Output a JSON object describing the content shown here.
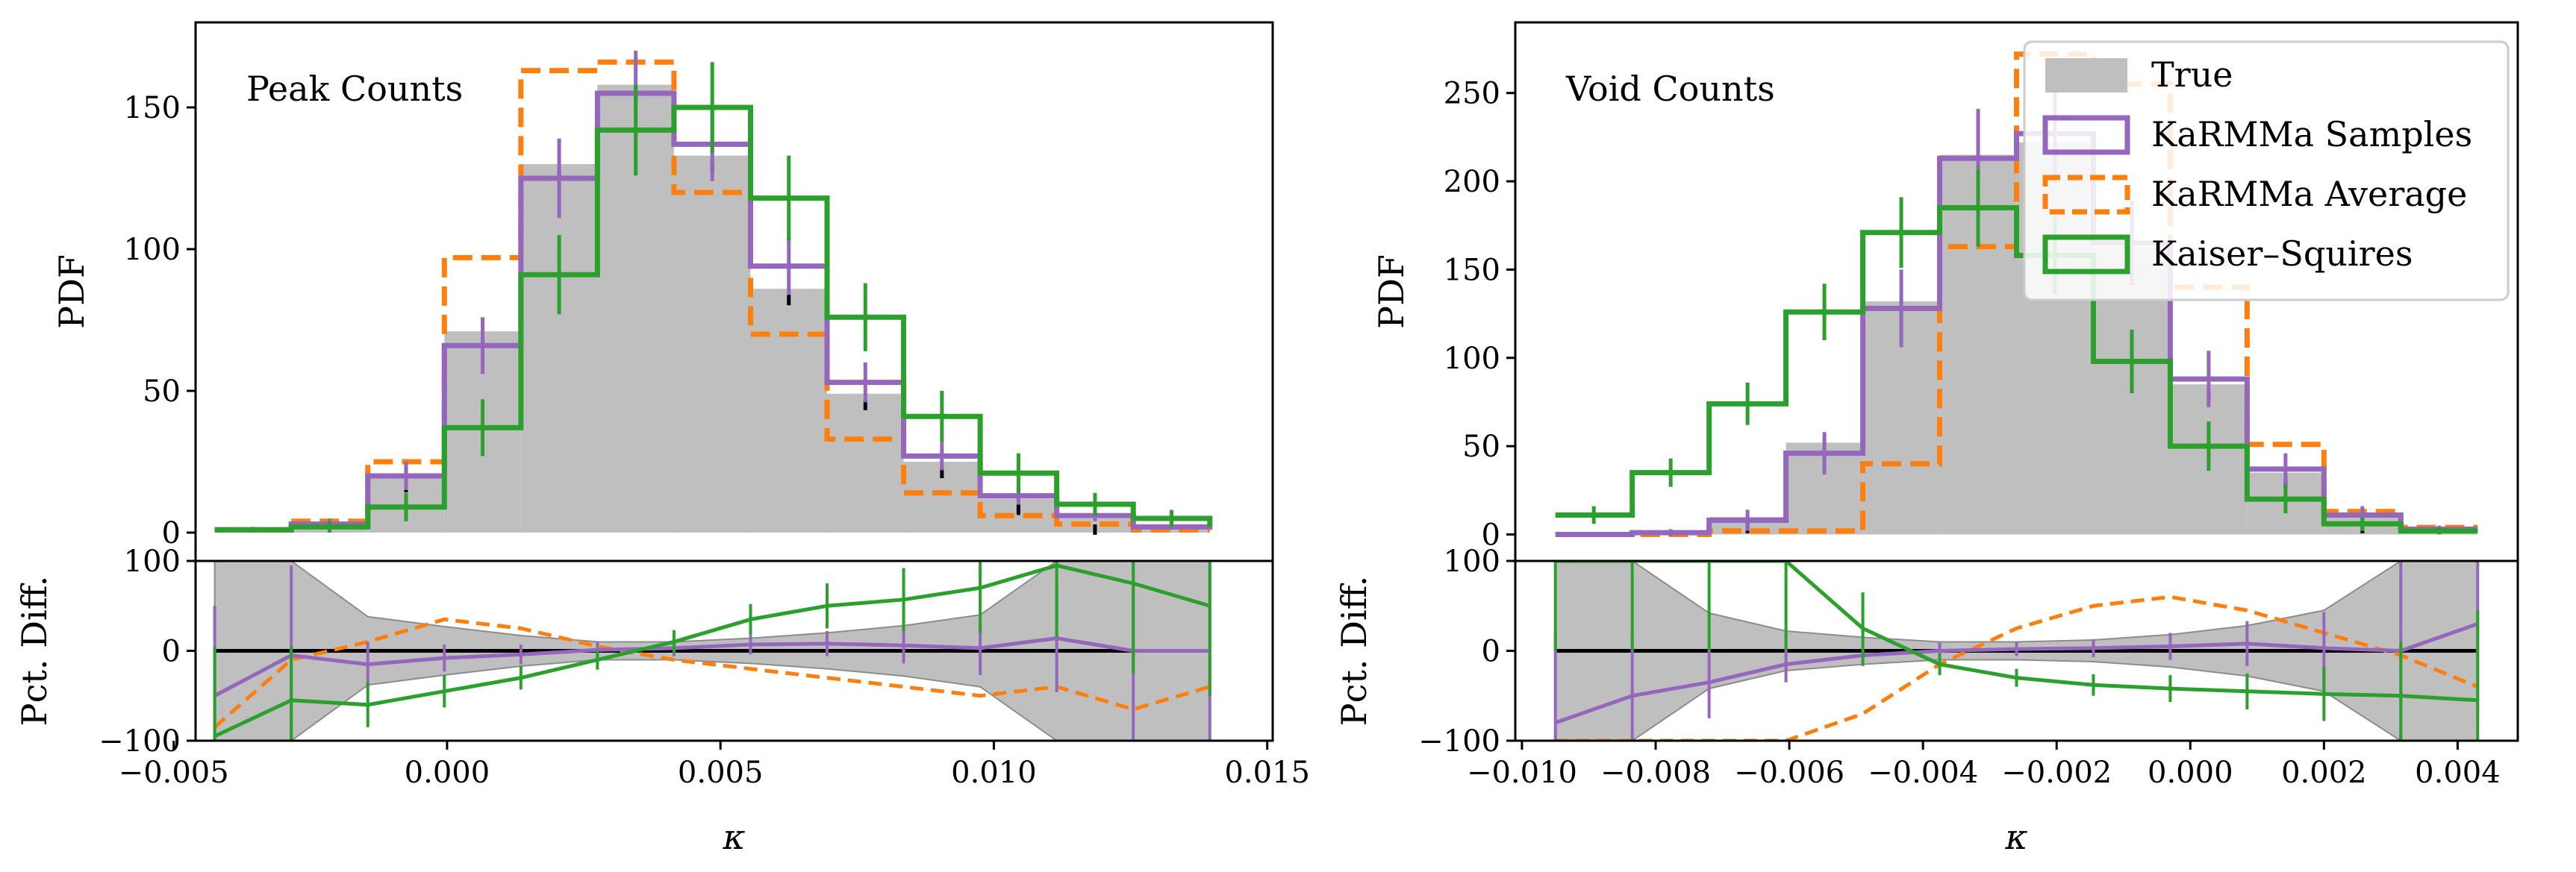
{
  "colors": {
    "true_fill": "#bfbfbf",
    "samples": "#9467bd",
    "average": "#ff7f0e",
    "ks": "#2ca02c",
    "band": "#bfbfbf"
  },
  "legend": {
    "placement": "top-right of right panel",
    "entries": [
      "True",
      "KaRMMa Samples",
      "KaRMMa Average",
      "Kaiser–Squires"
    ]
  },
  "chart_data": [
    {
      "type": "bar",
      "panel": "peak",
      "annotation": "Peak Counts",
      "ylabel": "PDF",
      "ylim": [
        -10,
        180
      ],
      "yticks": [
        0,
        50,
        100,
        150
      ],
      "bin_edges": [
        -0.00425,
        -0.00285,
        -0.00145,
        -5e-05,
        0.00135,
        0.00275,
        0.00415,
        0.00555,
        0.00695,
        0.00835,
        0.00975,
        0.01115,
        0.01255,
        0.01395
      ],
      "series": [
        {
          "name": "True",
          "values": [
            1,
            3,
            20,
            71,
            130,
            158,
            133,
            86,
            49,
            25,
            12,
            5,
            2,
            1
          ]
        },
        {
          "name": "KaRMMa Samples",
          "values": [
            1,
            3,
            20,
            66,
            125,
            155,
            137,
            94,
            53,
            27,
            13,
            6,
            2,
            1
          ],
          "err": [
            1,
            2,
            5,
            10,
            14,
            15,
            13,
            10,
            7,
            5,
            3,
            2,
            1,
            1
          ]
        },
        {
          "name": "KaRMMa Average",
          "values": [
            1,
            4,
            25,
            97,
            163,
            166,
            120,
            70,
            33,
            14,
            6,
            3,
            1,
            1
          ]
        },
        {
          "name": "Kaiser–Squires",
          "values": [
            1,
            2,
            9,
            37,
            91,
            142,
            150,
            118,
            76,
            41,
            21,
            10,
            5,
            2
          ],
          "err": [
            1,
            2,
            5,
            10,
            14,
            16,
            16,
            15,
            12,
            9,
            7,
            4,
            3,
            2
          ]
        }
      ],
      "diff": {
        "ylabel": "Pct. Diff.",
        "xlabel": "κ",
        "ylim": [
          -100,
          100
        ],
        "yticks": [
          -100,
          0,
          100
        ],
        "xlim": [
          -0.0046,
          0.0151
        ],
        "xticks": [
          -0.005,
          0.0,
          0.005,
          0.01,
          0.015
        ],
        "xtick_labels": [
          "−0.005",
          "0.000",
          "0.005",
          "0.010",
          "0.015"
        ],
        "x": [
          -0.00425,
          -0.00285,
          -0.00145,
          -5e-05,
          0.00135,
          0.00275,
          0.00415,
          0.00555,
          0.00695,
          0.00835,
          0.00975,
          0.01115,
          0.01255,
          0.01395
        ],
        "band_upper": [
          100,
          100,
          38,
          27,
          17,
          10,
          10,
          14,
          20,
          28,
          40,
          100,
          100,
          100
        ],
        "band_lower": [
          -100,
          -100,
          -38,
          -27,
          -17,
          -10,
          -10,
          -14,
          -20,
          -28,
          -40,
          -100,
          -100,
          -100
        ],
        "samples": [
          -50,
          -5,
          -15,
          -8,
          -4,
          1,
          3,
          7,
          8,
          6,
          3,
          14,
          0,
          0
        ],
        "samples_err": [
          100,
          100,
          25,
          15,
          11,
          9,
          9,
          11,
          14,
          20,
          30,
          60,
          100,
          100
        ],
        "average": [
          -85,
          -10,
          10,
          35,
          25,
          5,
          -10,
          -20,
          -30,
          -40,
          -50,
          -40,
          -65,
          -40
        ],
        "ks": [
          -95,
          -55,
          -60,
          -45,
          -30,
          -10,
          10,
          35,
          50,
          57,
          70,
          95,
          75,
          50
        ],
        "ks_err": [
          100,
          60,
          25,
          18,
          13,
          11,
          13,
          17,
          25,
          35,
          50,
          80,
          100,
          100
        ]
      }
    },
    {
      "type": "bar",
      "panel": "void",
      "annotation": "Void Counts",
      "ylabel": "PDF",
      "ylim": [
        -15,
        290
      ],
      "yticks": [
        0,
        50,
        100,
        150,
        200,
        250
      ],
      "bin_edges": [
        -0.0095,
        -0.00835,
        -0.0072,
        -0.00605,
        -0.0049,
        -0.00375,
        -0.0026,
        -0.00145,
        -0.0003,
        0.00085,
        0.002,
        0.00315,
        0.0043
      ],
      "series": [
        {
          "name": "True",
          "values": [
            0,
            1,
            10,
            52,
            132,
            215,
            222,
            163,
            85,
            35,
            10,
            3
          ]
        },
        {
          "name": "KaRMMa Samples",
          "values": [
            0,
            1,
            8,
            46,
            128,
            213,
            227,
            165,
            88,
            37,
            11,
            3
          ],
          "err": [
            1,
            2,
            6,
            12,
            22,
            28,
            28,
            24,
            16,
            9,
            5,
            2
          ]
        },
        {
          "name": "KaRMMa Average",
          "values": [
            0,
            0,
            2,
            2,
            40,
            163,
            272,
            255,
            140,
            51,
            13,
            4
          ]
        },
        {
          "name": "Kaiser–Squires",
          "values": [
            11,
            35,
            74,
            126,
            171,
            185,
            158,
            98,
            50,
            20,
            6,
            2
          ],
          "err": [
            5,
            8,
            12,
            16,
            20,
            22,
            22,
            18,
            14,
            8,
            4,
            2
          ]
        }
      ],
      "diff": {
        "ylabel": "Pct. Diff.",
        "xlabel": "κ",
        "ylim": [
          -100,
          100
        ],
        "yticks": [
          -100,
          0,
          100
        ],
        "xlim": [
          -0.0101,
          0.0049
        ],
        "xticks": [
          -0.01,
          -0.008,
          -0.006,
          -0.004,
          -0.002,
          0.0,
          0.002,
          0.004
        ],
        "xtick_labels": [
          "−0.010",
          "−0.008",
          "−0.006",
          "−0.004",
          "−0.002",
          "0.000",
          "0.002",
          "0.004"
        ],
        "x": [
          -0.0095,
          -0.00835,
          -0.0072,
          -0.00605,
          -0.0049,
          -0.00375,
          -0.0026,
          -0.00145,
          -0.0003,
          0.00085,
          0.002,
          0.00315,
          0.0043
        ],
        "band_upper": [
          100,
          100,
          42,
          22,
          15,
          10,
          10,
          12,
          18,
          28,
          45,
          100,
          100
        ],
        "band_lower": [
          -100,
          -100,
          -42,
          -22,
          -15,
          -10,
          -10,
          -12,
          -18,
          -28,
          -45,
          -100,
          -100
        ],
        "samples": [
          -80,
          -50,
          -35,
          -15,
          -5,
          0,
          2,
          3,
          5,
          8,
          3,
          0,
          30
        ],
        "samples_err": [
          100,
          70,
          40,
          20,
          12,
          9,
          8,
          10,
          15,
          25,
          40,
          100,
          100
        ],
        "average": [
          -100,
          -100,
          -100,
          -100,
          -70,
          -15,
          25,
          50,
          60,
          45,
          20,
          -5,
          -40
        ],
        "ks": [
          100,
          100,
          100,
          100,
          25,
          -15,
          -30,
          -38,
          -42,
          -45,
          -48,
          -50,
          -55
        ],
        "ks_err": [
          100,
          100,
          100,
          100,
          40,
          12,
          10,
          12,
          15,
          20,
          30,
          60,
          100
        ]
      }
    }
  ]
}
